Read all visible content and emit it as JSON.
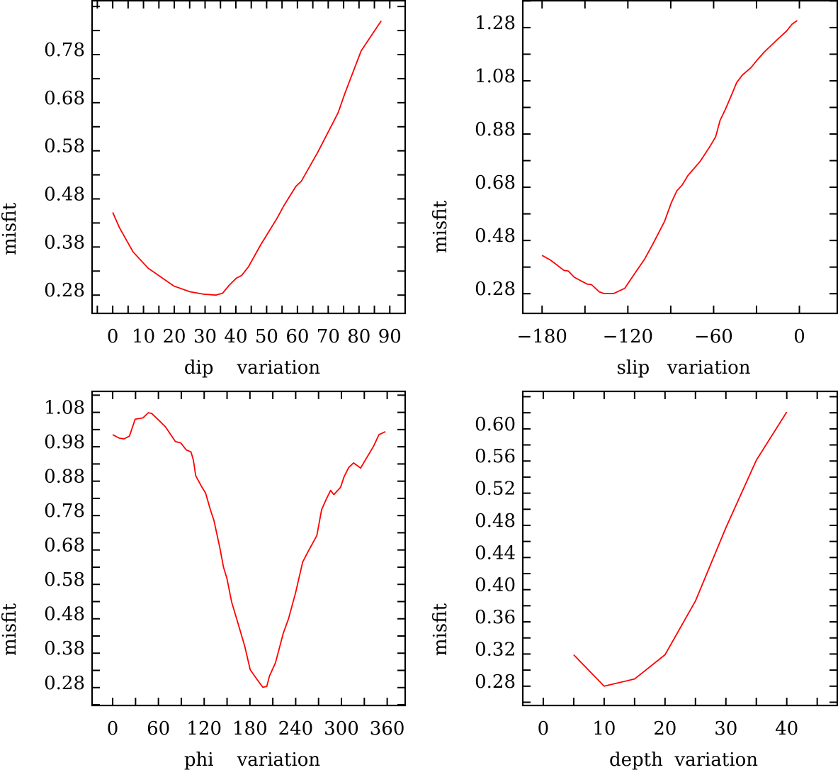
{
  "chart_data": [
    {
      "type": "line",
      "title": "",
      "xlabel": "dip    variation",
      "ylabel": "misfit",
      "xlim": [
        -6.7,
        95.0
      ],
      "ylim": [
        0.242,
        0.892
      ],
      "xticks": [
        0,
        10,
        20,
        30,
        40,
        50,
        60,
        70,
        80,
        90
      ],
      "xtick_labels": [
        "0",
        "10",
        "20",
        "30",
        "40",
        "50",
        "60",
        "70",
        "80",
        "90"
      ],
      "x_minor_step": 5,
      "yticks": [
        0.28,
        0.38,
        0.48,
        0.58,
        0.68,
        0.78
      ],
      "ytick_labels": [
        "0.28",
        "0.38",
        "0.48",
        "0.58",
        "0.68",
        "0.78"
      ],
      "y_minor_step": 0.05,
      "grid": false,
      "line_color": "#ff0000",
      "series": [
        {
          "name": "dip",
          "x": [
            0,
            2.2,
            6.6,
            11.5,
            19.8,
            25.1,
            29.5,
            33.5,
            35.7,
            37.9,
            40.1,
            41.9,
            44.1,
            48.1,
            53.4,
            55.6,
            59.5,
            61.3,
            66.6,
            73.2,
            75.4,
            80.7,
            87.2
          ],
          "y": [
            0.452,
            0.42,
            0.37,
            0.336,
            0.299,
            0.287,
            0.282,
            0.28,
            0.284,
            0.301,
            0.315,
            0.321,
            0.339,
            0.385,
            0.44,
            0.466,
            0.506,
            0.517,
            0.577,
            0.659,
            0.699,
            0.788,
            0.85
          ]
        }
      ]
    },
    {
      "type": "line",
      "title": "",
      "xlabel": "slip   variation",
      "ylabel": "misfit",
      "xlim": [
        -193.5,
        26.5
      ],
      "ylim": [
        0.206,
        1.381
      ],
      "xticks": [
        -180,
        -120,
        -60,
        0
      ],
      "xtick_labels": [
        "−180",
        "−120",
        "−60",
        "0"
      ],
      "x_minor_step": 30,
      "yticks": [
        0.28,
        0.48,
        0.68,
        0.88,
        1.08,
        1.28
      ],
      "ytick_labels": [
        "0.28",
        "0.48",
        "0.68",
        "0.88",
        "1.08",
        "1.28"
      ],
      "y_minor_step": 0.1,
      "grid": false,
      "line_color": "#ff0000",
      "series": [
        {
          "name": "slip",
          "x": [
            -180,
            -174.1,
            -164.8,
            -161.7,
            -157.5,
            -148.5,
            -145.4,
            -140,
            -136.9,
            -129.9,
            -122.2,
            -116.7,
            -108.2,
            -102,
            -94.3,
            -89.6,
            -85.7,
            -81.9,
            -78,
            -69.5,
            -62.5,
            -58.6,
            -55.5,
            -51.6,
            -47,
            -43.9,
            -40,
            -33.8,
            -29.1,
            -24.5,
            -15.2,
            -9,
            -5.1,
            -1.6
          ],
          "y": [
            0.424,
            0.406,
            0.368,
            0.365,
            0.342,
            0.316,
            0.314,
            0.287,
            0.281,
            0.281,
            0.3,
            0.344,
            0.411,
            0.472,
            0.552,
            0.622,
            0.667,
            0.689,
            0.724,
            0.777,
            0.834,
            0.87,
            0.931,
            0.975,
            1.033,
            1.073,
            1.101,
            1.13,
            1.161,
            1.189,
            1.236,
            1.267,
            1.293,
            1.306
          ]
        }
      ]
    },
    {
      "type": "line",
      "title": "",
      "xlabel": "phi    variation",
      "ylabel": "misfit",
      "xlim": [
        -27,
        383.6
      ],
      "ylim": [
        0.228,
        1.141
      ],
      "xticks": [
        0,
        60,
        120,
        180,
        240,
        300,
        360
      ],
      "xtick_labels": [
        "0",
        "60",
        "120",
        "180",
        "240",
        "300",
        "360"
      ],
      "x_minor_step": 30,
      "yticks": [
        0.28,
        0.38,
        0.48,
        0.58,
        0.68,
        0.78,
        0.88,
        0.98,
        1.08
      ],
      "ytick_labels": [
        "0.28",
        "0.38",
        "0.48",
        "0.58",
        "0.68",
        "0.78",
        "0.88",
        "0.98",
        "1.08"
      ],
      "y_minor_step": 0.05,
      "grid": false,
      "line_color": "#ff0000",
      "series": [
        {
          "name": "phi",
          "x": [
            0,
            8.7,
            14.9,
            22,
            29.5,
            39.7,
            46.8,
            51.2,
            61.4,
            69.2,
            82.2,
            89.4,
            96.5,
            102.7,
            105.8,
            108.9,
            116.4,
            121.9,
            128.1,
            132.8,
            140.6,
            145.2,
            149.9,
            156.1,
            165.4,
            173.1,
            180.3,
            190.2,
            197,
            202,
            205.7,
            213.5,
            223.7,
            230.6,
            239.8,
            249.2,
            256,
            267.8,
            274,
            280.2,
            285.8,
            290.1,
            298.8,
            303.5,
            309.7,
            315.9,
            325.2,
            332.3,
            342.3,
            349.1,
            357.7
          ],
          "y": [
            1.015,
            1.005,
            1.003,
            1.011,
            1.06,
            1.064,
            1.079,
            1.077,
            1.055,
            1.038,
            0.995,
            0.991,
            0.971,
            0.965,
            0.941,
            0.896,
            0.865,
            0.845,
            0.797,
            0.766,
            0.686,
            0.631,
            0.597,
            0.528,
            0.459,
            0.401,
            0.332,
            0.301,
            0.281,
            0.283,
            0.314,
            0.352,
            0.438,
            0.48,
            0.555,
            0.645,
            0.674,
            0.722,
            0.797,
            0.828,
            0.853,
            0.841,
            0.862,
            0.893,
            0.92,
            0.933,
            0.918,
            0.945,
            0.982,
            1.015,
            1.024
          ]
        }
      ]
    },
    {
      "type": "line",
      "title": "",
      "xlabel": "depth  variation",
      "ylabel": "misfit",
      "xlim": [
        -3.37,
        48.3
      ],
      "ylim": [
        0.256,
        0.6466
      ],
      "xticks": [
        0,
        10,
        20,
        30,
        40
      ],
      "xtick_labels": [
        "0",
        "10",
        "20",
        "30",
        "40"
      ],
      "x_minor_step": 5,
      "yticks": [
        0.28,
        0.32,
        0.36,
        0.4,
        0.44,
        0.48,
        0.52,
        0.56,
        0.6
      ],
      "ytick_labels": [
        "0.28",
        "0.32",
        "0.36",
        "0.40",
        "0.44",
        "0.48",
        "0.52",
        "0.56",
        "0.60"
      ],
      "y_minor_step": 0.02,
      "grid": false,
      "line_color": "#ff0000",
      "series": [
        {
          "name": "depth",
          "x": [
            5,
            10,
            15,
            20,
            25,
            30,
            35,
            40
          ],
          "y": [
            0.319,
            0.28,
            0.289,
            0.319,
            0.386,
            0.477,
            0.561,
            0.621
          ]
        }
      ]
    }
  ]
}
